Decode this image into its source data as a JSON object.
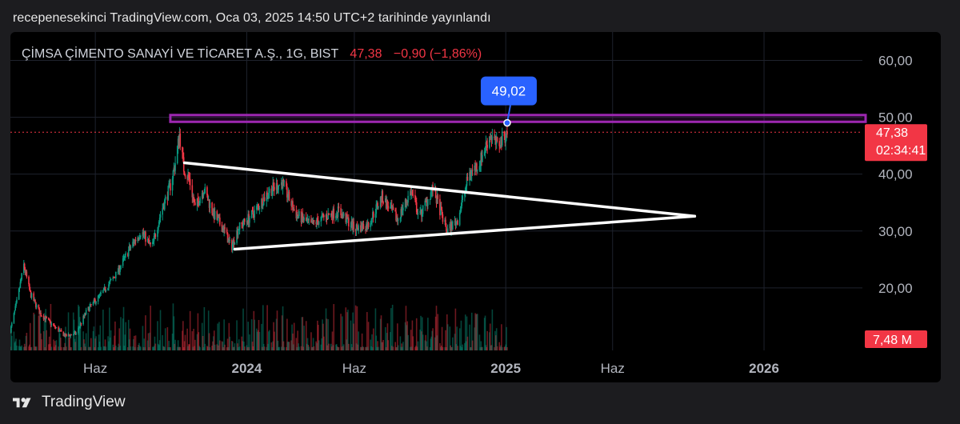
{
  "header": {
    "publish_text": "recepenesekinci TradingView.com, Oca 03, 2025 14:50 UTC+2 tarihinde yayınlandı"
  },
  "legend": {
    "symbol": "ÇİMSA ÇİMENTO SANAYİ VE TİCARET A.Ş., 1G, BIST",
    "price": "47,38",
    "change": "−0,90 (−1,86%)"
  },
  "price_axis": {
    "ticks": [
      {
        "value": 60,
        "label": "60,00"
      },
      {
        "value": 50,
        "label": "50,00"
      },
      {
        "value": 40,
        "label": "40,00"
      },
      {
        "value": 30,
        "label": "30,00"
      },
      {
        "value": 20,
        "label": "20,00"
      }
    ],
    "last_price_label": "47,38",
    "countdown_label": "02:34:41",
    "volume_label": "7,48 M"
  },
  "time_axis": {
    "ticks": [
      {
        "date": "2023-06-01",
        "label": "Haz",
        "bold": false
      },
      {
        "date": "2024-01-01",
        "label": "2024",
        "bold": true
      },
      {
        "date": "2024-06-01",
        "label": "Haz",
        "bold": false
      },
      {
        "date": "2025-01-01",
        "label": "2025",
        "bold": true
      },
      {
        "date": "2025-06-01",
        "label": "Haz",
        "bold": false
      },
      {
        "date": "2026-01-01",
        "label": "2026",
        "bold": true
      }
    ]
  },
  "callout": {
    "label": "49,02",
    "date": "2025-01-03",
    "price": 49.02
  },
  "chart_data": {
    "type": "candlestick",
    "title": "ÇİMSA ÇİMENTO SANAYİ VE TİCARET A.Ş., 1G, BIST",
    "ylim": [
      9,
      65
    ],
    "xlim": [
      "2023-02-01",
      "2026-05-20"
    ],
    "last_price": 47.38,
    "grid": true,
    "price_path": [
      [
        "2023-02-01",
        12.5
      ],
      [
        "2023-02-10",
        17.5
      ],
      [
        "2023-02-20",
        24.0
      ],
      [
        "2023-03-01",
        19.0
      ],
      [
        "2023-03-15",
        15.5
      ],
      [
        "2023-04-01",
        13.5
      ],
      [
        "2023-04-20",
        11.5
      ],
      [
        "2023-05-05",
        12.0
      ],
      [
        "2023-05-20",
        16.0
      ],
      [
        "2023-06-10",
        19.0
      ],
      [
        "2023-07-01",
        22.5
      ],
      [
        "2023-07-20",
        27.0
      ],
      [
        "2023-08-05",
        30.0
      ],
      [
        "2023-08-20",
        27.0
      ],
      [
        "2023-09-01",
        33.0
      ],
      [
        "2023-09-15",
        38.0
      ],
      [
        "2023-09-22",
        42.0
      ],
      [
        "2023-09-28",
        47.0
      ],
      [
        "2023-10-04",
        41.0
      ],
      [
        "2023-10-12",
        39.0
      ],
      [
        "2023-10-20",
        34.0
      ],
      [
        "2023-11-01",
        37.5
      ],
      [
        "2023-11-15",
        33.0
      ],
      [
        "2023-12-01",
        30.0
      ],
      [
        "2023-12-10",
        27.0
      ],
      [
        "2023-12-20",
        30.5
      ],
      [
        "2024-01-10",
        33.0
      ],
      [
        "2024-02-01",
        37.0
      ],
      [
        "2024-02-20",
        38.5
      ],
      [
        "2024-03-10",
        33.0
      ],
      [
        "2024-04-01",
        31.0
      ],
      [
        "2024-04-20",
        32.5
      ],
      [
        "2024-05-10",
        33.5
      ],
      [
        "2024-06-01",
        30.5
      ],
      [
        "2024-06-20",
        31.0
      ],
      [
        "2024-07-10",
        36.0
      ],
      [
        "2024-08-01",
        32.0
      ],
      [
        "2024-08-20",
        37.0
      ],
      [
        "2024-09-01",
        32.5
      ],
      [
        "2024-09-20",
        37.5
      ],
      [
        "2024-10-10",
        30.0
      ],
      [
        "2024-10-25",
        32.0
      ],
      [
        "2024-11-10",
        40.0
      ],
      [
        "2024-11-25",
        42.0
      ],
      [
        "2024-12-10",
        47.0
      ],
      [
        "2024-12-20",
        45.0
      ],
      [
        "2025-01-03",
        47.38
      ]
    ],
    "annotations": {
      "resistance_zone": {
        "from": "2023-09-15",
        "to": "2026-05-20",
        "low": 49.2,
        "high": 50.4,
        "color": "#9c27b0"
      },
      "triangle_upper": [
        [
          "2023-10-05",
          42.0
        ],
        [
          "2025-09-25",
          32.6
        ]
      ],
      "triangle_lower": [
        [
          "2023-12-15",
          26.8
        ],
        [
          "2025-09-25",
          32.6
        ]
      ],
      "last_price_line": {
        "value": 47.38,
        "color": "#f23645"
      }
    },
    "colors": {
      "up": "#089981",
      "down": "#f23645",
      "callout": "#2962ff",
      "triangle": "#ffffff"
    }
  }
}
